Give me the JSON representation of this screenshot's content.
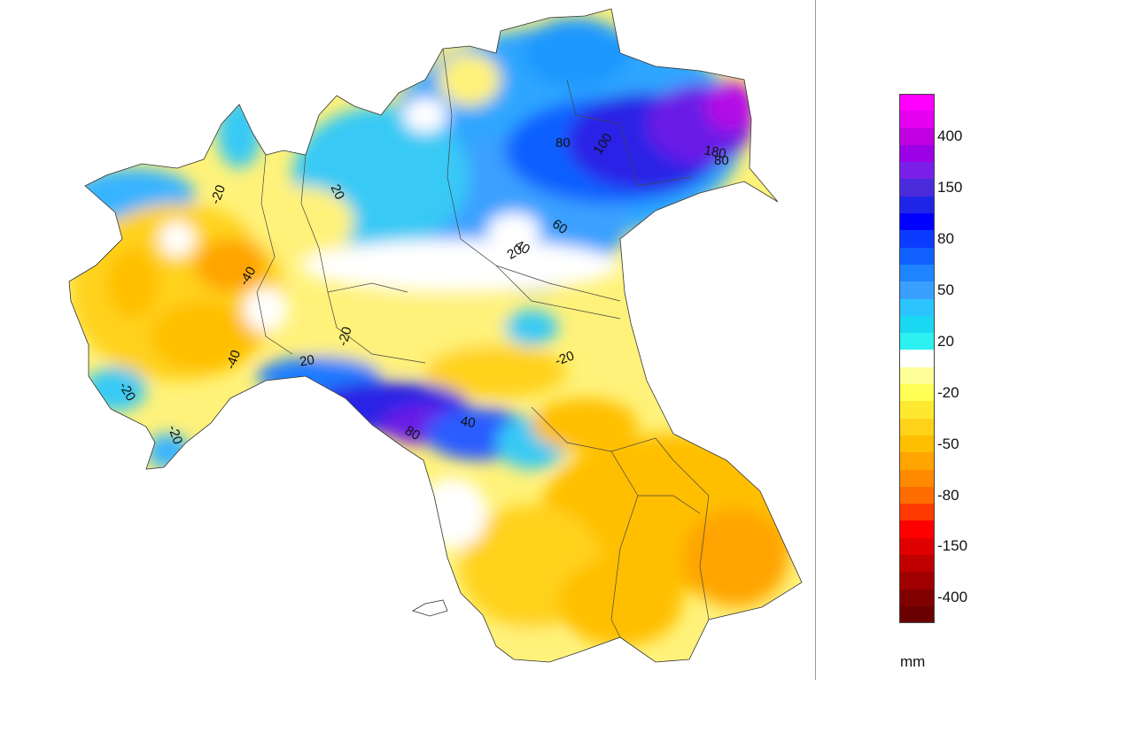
{
  "legend": {
    "unit": "mm",
    "colors": [
      "#ff00ff",
      "#e500f0",
      "#c000e0",
      "#9b00e6",
      "#7a1fe8",
      "#4a2bdc",
      "#1f25e6",
      "#0000ff",
      "#0a3cff",
      "#1060ff",
      "#1f84ff",
      "#3aa0ff",
      "#2cc4ff",
      "#1ad8f2",
      "#2cf0f2",
      "#ffffff",
      "#ffff9a",
      "#ffff55",
      "#ffe930",
      "#ffd21a",
      "#ffbf00",
      "#ffa400",
      "#ff8a00",
      "#ff6d00",
      "#ff3a00",
      "#ff0000",
      "#e00000",
      "#c00000",
      "#a00000",
      "#800000",
      "#6b0000"
    ],
    "tick_labels": [
      {
        "text": "400",
        "index": 2
      },
      {
        "text": "150",
        "index": 5
      },
      {
        "text": "80",
        "index": 8
      },
      {
        "text": "50",
        "index": 11
      },
      {
        "text": "20",
        "index": 14
      },
      {
        "text": "-20",
        "index": 17
      },
      {
        "text": "-50",
        "index": 20
      },
      {
        "text": "-80",
        "index": 23
      },
      {
        "text": "-150",
        "index": 26
      },
      {
        "text": "-400",
        "index": 29
      }
    ]
  },
  "map": {
    "contour_labels": [
      "-20",
      "-40",
      "-40",
      "-20",
      "-20",
      "20",
      "20",
      "80",
      "100",
      "60",
      "40",
      "20",
      "-20",
      "-20",
      "40",
      "80",
      "180",
      "80"
    ]
  }
}
